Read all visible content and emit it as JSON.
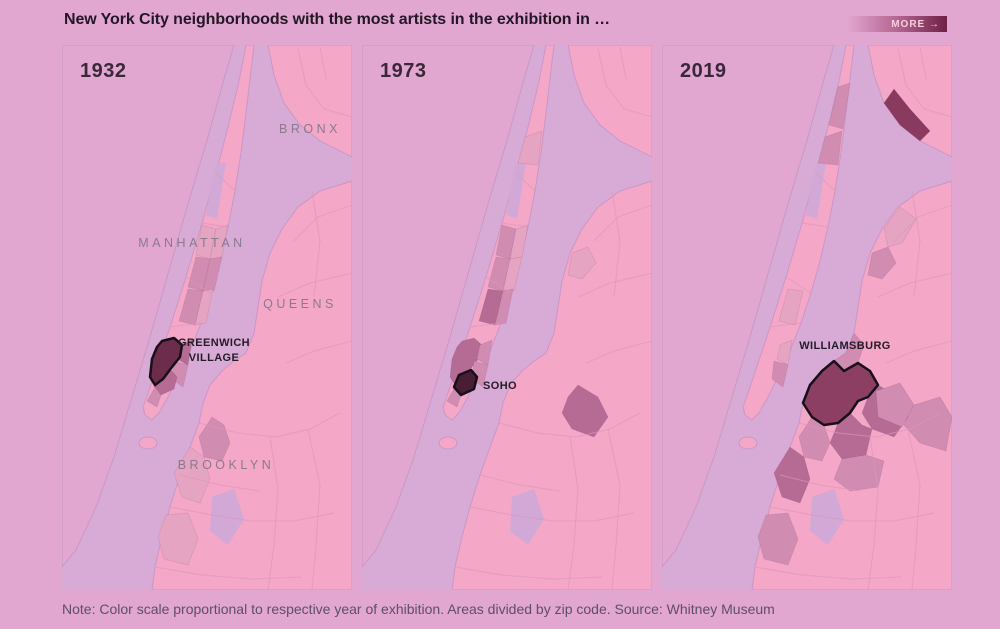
{
  "header": {
    "title": "New York City neighborhoods with the most artists in the exhibition in …",
    "more_label": "MORE →"
  },
  "footer": {
    "note": "Note: Color scale proportional to respective year of exhibition. Areas divided by zip code. Source: Whitney Museum"
  },
  "colors": {
    "page_bg": "#e1a7d0",
    "land": "#f4a7c7",
    "water": "#d8abd6",
    "park": "#d2a8d6",
    "nj_land": "#e1a7d0",
    "shoreline": "#c997c6",
    "boundary_line": "#dc96b8",
    "zip_levels": [
      "#e5a4c2",
      "#d18cb1",
      "#b56b94",
      "#8a3a5f"
    ],
    "highlight_stroke": "#17101a",
    "year_label": "#3a2839",
    "borough_label": "#8a7a8e",
    "area_label": "#241b27",
    "title_text": "#231726",
    "note_text": "#5d4f66",
    "more_text": "#f3cfe0",
    "more_gradient_end": "#6d2044"
  },
  "panels": [
    {
      "year": "1932",
      "borough_labels": [
        "BRONX",
        "MANHATTAN",
        "QUEENS",
        "BROOKLYN"
      ],
      "highlight": {
        "key": "west_village",
        "name": "Greenwich Village",
        "label_lines": [
          "GREENWICH",
          "VILLAGE"
        ],
        "fill": "#6d2c4b"
      },
      "shaded": [
        {
          "area": "uws",
          "level": 1
        },
        {
          "area": "ues",
          "level": 1
        },
        {
          "area": "midtown_west",
          "level": 2
        },
        {
          "area": "midtown_east",
          "level": 2
        },
        {
          "area": "chelsea",
          "level": 2
        },
        {
          "area": "gramercy",
          "level": 1
        },
        {
          "area": "east_village",
          "level": 3
        },
        {
          "area": "les",
          "level": 2
        },
        {
          "area": "soho",
          "level": 3
        },
        {
          "area": "tribeca",
          "level": 2
        },
        {
          "area": "clinton_hill",
          "level": 2
        },
        {
          "area": "park_slope",
          "level": 1
        },
        {
          "area": "sunset_park",
          "level": 1
        }
      ]
    },
    {
      "year": "1973",
      "borough_labels": [],
      "highlight": {
        "key": "soho",
        "name": "SoHo",
        "label_lines": [
          "SOHO"
        ],
        "fill": "#4a1d35"
      },
      "shaded": [
        {
          "area": "harlem",
          "level": 1
        },
        {
          "area": "uws",
          "level": 2
        },
        {
          "area": "ues",
          "level": 1
        },
        {
          "area": "midtown_west",
          "level": 2
        },
        {
          "area": "midtown_east",
          "level": 1
        },
        {
          "area": "chelsea",
          "level": 3
        },
        {
          "area": "gramercy",
          "level": 2
        },
        {
          "area": "west_village",
          "level": 3
        },
        {
          "area": "east_village",
          "level": 2
        },
        {
          "area": "les",
          "level": 2
        },
        {
          "area": "tribeca",
          "level": 2
        },
        {
          "area": "bushwick",
          "level": 3
        },
        {
          "area": "lic",
          "level": 1
        }
      ]
    },
    {
      "year": "2019",
      "borough_labels": [],
      "highlight": {
        "key": "williamsburg",
        "name": "Williamsburg",
        "label_lines": [
          "WILLIAMSBURG"
        ],
        "fill": "#8c3f63"
      },
      "shaded": [
        {
          "area": "wash_heights",
          "level": 2
        },
        {
          "area": "harlem",
          "level": 2
        },
        {
          "area": "south_bronx",
          "level": 4
        },
        {
          "area": "astoria",
          "level": 1
        },
        {
          "area": "lic",
          "level": 2
        },
        {
          "area": "chelsea",
          "level": 1
        },
        {
          "area": "east_village",
          "level": 1
        },
        {
          "area": "les",
          "level": 2
        },
        {
          "area": "greenpoint",
          "level": 2
        },
        {
          "area": "bushwick",
          "level": 3
        },
        {
          "area": "bedstuy",
          "level": 3
        },
        {
          "area": "clinton_hill",
          "level": 2
        },
        {
          "area": "park_slope",
          "level": 3
        },
        {
          "area": "crown_heights",
          "level": 2
        },
        {
          "area": "sunset_park",
          "level": 2
        },
        {
          "area": "ridgewood",
          "level": 2
        },
        {
          "area": "glendale",
          "level": 2
        }
      ]
    }
  ]
}
